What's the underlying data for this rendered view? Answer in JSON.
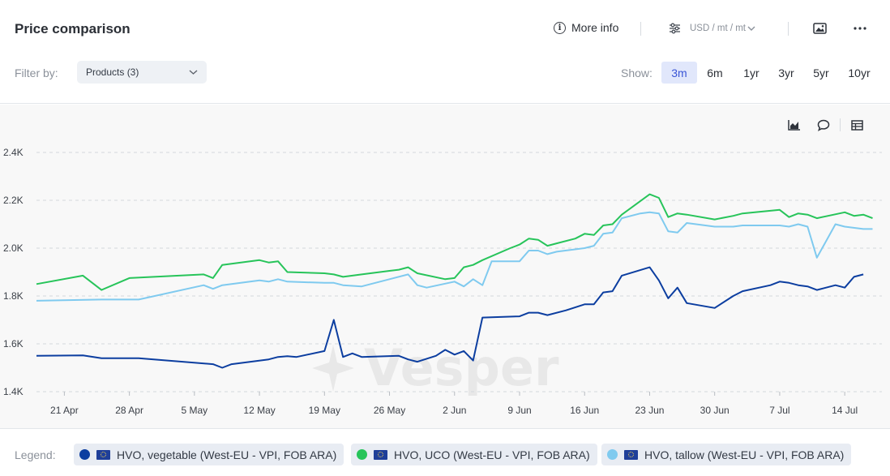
{
  "header": {
    "title": "Price comparison",
    "more_info_label": "More info",
    "units_label": "USD / mt / mt",
    "filter_label": "Filter by:",
    "filter_value": "Products (3)",
    "show_label": "Show:",
    "ranges": [
      "3m",
      "6m",
      "1yr",
      "3yr",
      "5yr",
      "10yr"
    ],
    "active_range": "3m"
  },
  "watermark": "Vesper",
  "legend": {
    "label": "Legend:",
    "items": [
      {
        "name": "HVO, vegetable (West-EU - VPI, FOB ARA)",
        "color": "#0c3ea0"
      },
      {
        "name": "HVO, UCO (West-EU - VPI, FOB ARA)",
        "color": "#27c45a"
      },
      {
        "name": "HVO, tallow (West-EU - VPI, FOB ARA)",
        "color": "#7fcaef"
      }
    ]
  },
  "chart_data": {
    "type": "line",
    "y_ticks": [
      "1.4K",
      "1.6K",
      "1.8K",
      "2.0K",
      "2.2K",
      "2.4K"
    ],
    "y_tick_values": [
      1400,
      1600,
      1800,
      2000,
      2200,
      2400
    ],
    "ylim": [
      1400,
      2400
    ],
    "x_ticks": [
      "21 Apr",
      "28 Apr",
      "5 May",
      "12 May",
      "19 May",
      "26 May",
      "2 Jun",
      "9 Jun",
      "16 Jun",
      "23 Jun",
      "30 Jun",
      "7 Jul",
      "14 Jul"
    ],
    "x_tick_days": [
      5,
      12,
      19,
      26,
      33,
      40,
      47,
      54,
      61,
      68,
      75,
      82,
      89
    ],
    "x_domain_days": [
      2,
      93
    ],
    "x_day_origin_date": "16 Apr",
    "grid": true,
    "series": [
      {
        "name": "HVO, vegetable (West-EU - VPI, FOB ARA)",
        "color": "#0c3ea0",
        "points": [
          [
            2,
            1550
          ],
          [
            7,
            1552
          ],
          [
            9,
            1540
          ],
          [
            13,
            1540
          ],
          [
            21,
            1515
          ],
          [
            22,
            1500
          ],
          [
            23,
            1515
          ],
          [
            27,
            1535
          ],
          [
            28,
            1545
          ],
          [
            29,
            1548
          ],
          [
            30,
            1545
          ],
          [
            33,
            1570
          ],
          [
            34,
            1700
          ],
          [
            35,
            1545
          ],
          [
            36,
            1560
          ],
          [
            37,
            1545
          ],
          [
            41,
            1550
          ],
          [
            42,
            1535
          ],
          [
            43,
            1525
          ],
          [
            45,
            1550
          ],
          [
            46,
            1575
          ],
          [
            47,
            1555
          ],
          [
            48,
            1570
          ],
          [
            49,
            1530
          ],
          [
            50,
            1710
          ],
          [
            54,
            1715
          ],
          [
            55,
            1730
          ],
          [
            56,
            1730
          ],
          [
            57,
            1720
          ],
          [
            59,
            1740
          ],
          [
            61,
            1765
          ],
          [
            62,
            1765
          ],
          [
            63,
            1815
          ],
          [
            64,
            1820
          ],
          [
            65,
            1885
          ],
          [
            68,
            1920
          ],
          [
            69,
            1865
          ],
          [
            70,
            1790
          ],
          [
            71,
            1835
          ],
          [
            72,
            1770
          ],
          [
            75,
            1750
          ],
          [
            77,
            1800
          ],
          [
            78,
            1820
          ],
          [
            81,
            1845
          ],
          [
            82,
            1860
          ],
          [
            83,
            1855
          ],
          [
            84,
            1845
          ],
          [
            85,
            1840
          ],
          [
            86,
            1825
          ],
          [
            88,
            1845
          ],
          [
            89,
            1835
          ],
          [
            90,
            1880
          ],
          [
            91,
            1890
          ]
        ]
      },
      {
        "name": "HVO, UCO (West-EU - VPI, FOB ARA)",
        "color": "#27c45a",
        "points": [
          [
            2,
            1850
          ],
          [
            7,
            1885
          ],
          [
            9,
            1825
          ],
          [
            12,
            1875
          ],
          [
            20,
            1890
          ],
          [
            21,
            1875
          ],
          [
            22,
            1930
          ],
          [
            26,
            1950
          ],
          [
            27,
            1940
          ],
          [
            28,
            1945
          ],
          [
            29,
            1900
          ],
          [
            33,
            1895
          ],
          [
            34,
            1890
          ],
          [
            35,
            1880
          ],
          [
            37,
            1890
          ],
          [
            40,
            1905
          ],
          [
            41,
            1910
          ],
          [
            42,
            1920
          ],
          [
            43,
            1895
          ],
          [
            46,
            1870
          ],
          [
            47,
            1875
          ],
          [
            48,
            1920
          ],
          [
            49,
            1930
          ],
          [
            50,
            1950
          ],
          [
            53,
            2000
          ],
          [
            54,
            2015
          ],
          [
            55,
            2040
          ],
          [
            56,
            2035
          ],
          [
            57,
            2010
          ],
          [
            58,
            2020
          ],
          [
            60,
            2040
          ],
          [
            61,
            2060
          ],
          [
            62,
            2055
          ],
          [
            63,
            2095
          ],
          [
            64,
            2100
          ],
          [
            65,
            2140
          ],
          [
            68,
            2225
          ],
          [
            69,
            2210
          ],
          [
            70,
            2130
          ],
          [
            71,
            2145
          ],
          [
            72,
            2140
          ],
          [
            75,
            2120
          ],
          [
            77,
            2135
          ],
          [
            78,
            2145
          ],
          [
            82,
            2160
          ],
          [
            83,
            2130
          ],
          [
            84,
            2145
          ],
          [
            85,
            2140
          ],
          [
            86,
            2125
          ],
          [
            89,
            2150
          ],
          [
            90,
            2135
          ],
          [
            91,
            2140
          ],
          [
            92,
            2125
          ]
        ]
      },
      {
        "name": "HVO, tallow (West-EU - VPI, FOB ARA)",
        "color": "#7fcaef",
        "points": [
          [
            2,
            1780
          ],
          [
            9,
            1785
          ],
          [
            13,
            1785
          ],
          [
            20,
            1845
          ],
          [
            21,
            1830
          ],
          [
            22,
            1845
          ],
          [
            26,
            1865
          ],
          [
            27,
            1860
          ],
          [
            28,
            1870
          ],
          [
            29,
            1860
          ],
          [
            33,
            1855
          ],
          [
            34,
            1855
          ],
          [
            35,
            1845
          ],
          [
            37,
            1840
          ],
          [
            40,
            1870
          ],
          [
            42,
            1890
          ],
          [
            43,
            1845
          ],
          [
            44,
            1835
          ],
          [
            47,
            1860
          ],
          [
            48,
            1840
          ],
          [
            49,
            1870
          ],
          [
            50,
            1845
          ],
          [
            51,
            1945
          ],
          [
            54,
            1945
          ],
          [
            55,
            1990
          ],
          [
            56,
            1990
          ],
          [
            57,
            1975
          ],
          [
            58,
            1985
          ],
          [
            61,
            2000
          ],
          [
            62,
            2010
          ],
          [
            63,
            2060
          ],
          [
            64,
            2065
          ],
          [
            65,
            2125
          ],
          [
            67,
            2145
          ],
          [
            68,
            2150
          ],
          [
            69,
            2145
          ],
          [
            70,
            2070
          ],
          [
            71,
            2065
          ],
          [
            72,
            2105
          ],
          [
            75,
            2090
          ],
          [
            77,
            2090
          ],
          [
            78,
            2095
          ],
          [
            82,
            2095
          ],
          [
            83,
            2090
          ],
          [
            84,
            2100
          ],
          [
            85,
            2090
          ],
          [
            86,
            1960
          ],
          [
            88,
            2100
          ],
          [
            89,
            2090
          ],
          [
            91,
            2080
          ],
          [
            92,
            2080
          ]
        ]
      }
    ]
  }
}
